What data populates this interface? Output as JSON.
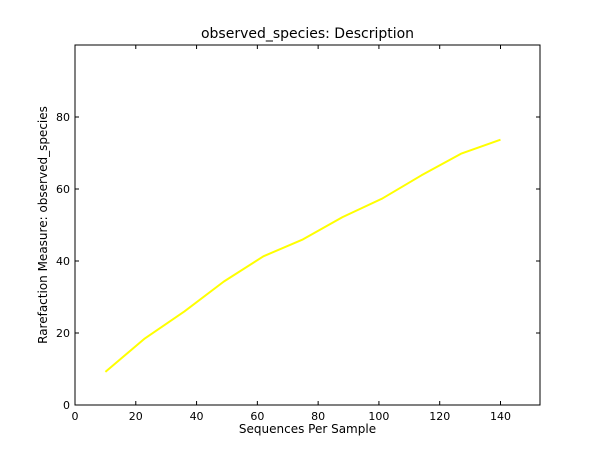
{
  "chart_data": {
    "type": "line",
    "title": "observed_species: Description",
    "xlabel": "Sequences Per Sample",
    "ylabel": "Rarefaction Measure: observed_species",
    "xlim": [
      0,
      153
    ],
    "ylim": [
      0,
      100
    ],
    "xticks": [
      0,
      20,
      40,
      60,
      80,
      100,
      120,
      140
    ],
    "yticks": [
      0,
      20,
      40,
      60,
      80
    ],
    "grid": false,
    "series": [
      {
        "color": "#ffff00",
        "x": [
          10,
          23,
          36,
          49,
          62,
          75,
          88,
          101,
          114,
          127,
          140
        ],
        "y": [
          9.2,
          18.5,
          26,
          34.3,
          41.3,
          46,
          52.2,
          57.3,
          63.8,
          69.8,
          73.7
        ]
      }
    ]
  }
}
